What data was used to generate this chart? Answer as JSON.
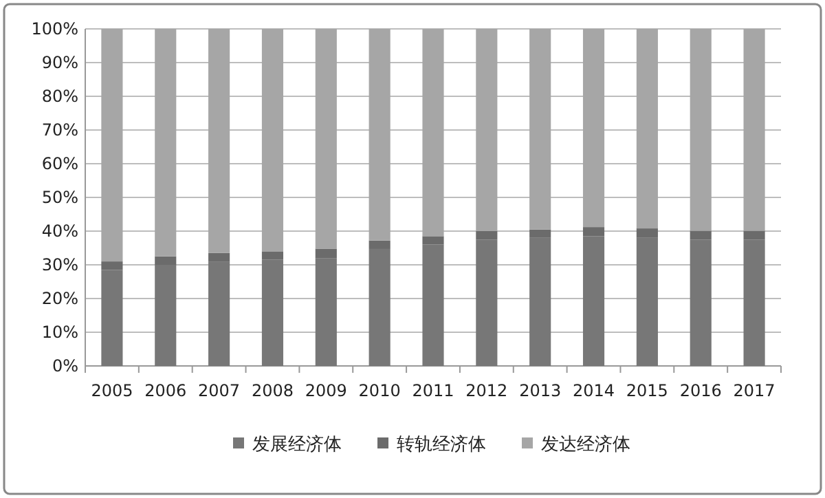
{
  "chart_data": {
    "type": "bar",
    "stacked": true,
    "categories": [
      "2005",
      "2006",
      "2007",
      "2008",
      "2009",
      "2010",
      "2011",
      "2012",
      "2013",
      "2014",
      "2015",
      "2016",
      "2017"
    ],
    "series": [
      {
        "name": "发展经济体",
        "color": "#777777",
        "values": [
          28.5,
          30,
          31,
          31.5,
          32,
          34.7,
          36,
          37.5,
          38,
          38.5,
          38,
          37.5,
          37.5
        ]
      },
      {
        "name": "转轨经济体",
        "color": "#6b6b6b",
        "values": [
          2.5,
          2.5,
          2.5,
          2.5,
          2.8,
          2.5,
          2.5,
          2.5,
          2.5,
          2.7,
          2.8,
          2.6,
          2.6
        ]
      },
      {
        "name": "发达经济体",
        "color": "#a6a6a6",
        "values": [
          69,
          67.5,
          66.5,
          66,
          65.2,
          62.8,
          61.5,
          60,
          59.5,
          58.8,
          59.2,
          59.9,
          59.9
        ]
      }
    ],
    "ylim": [
      0,
      100
    ],
    "yticks": [
      {
        "value": 0,
        "label": "0%"
      },
      {
        "value": 10,
        "label": "10%"
      },
      {
        "value": 20,
        "label": "20%"
      },
      {
        "value": 30,
        "label": "30%"
      },
      {
        "value": 40,
        "label": "40%"
      },
      {
        "value": 50,
        "label": "50%"
      },
      {
        "value": 60,
        "label": "60%"
      },
      {
        "value": 70,
        "label": "70%"
      },
      {
        "value": 80,
        "label": "80%"
      },
      {
        "value": 90,
        "label": "90%"
      },
      {
        "value": 100,
        "label": "100%"
      }
    ],
    "grid": "y",
    "legend": "bottom"
  }
}
